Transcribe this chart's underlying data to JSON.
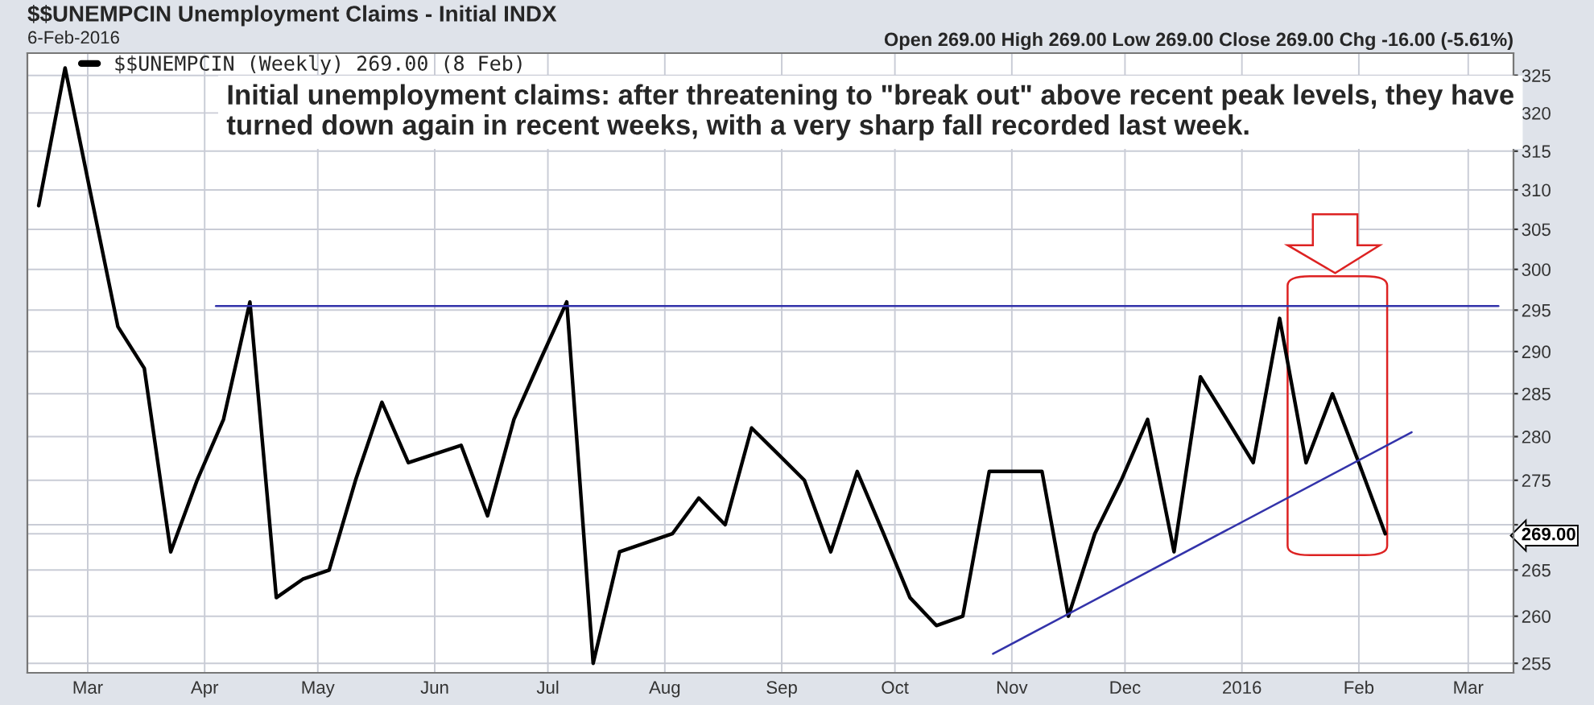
{
  "chart_data": {
    "type": "line",
    "title": "$$UNEMPCIN Unemployment Claims - Initial INDX",
    "subtitle": "6-Feb-2016",
    "x": [
      "2015-02-16",
      "2015-02-23",
      "2015-03-02",
      "2015-03-09",
      "2015-03-16",
      "2015-03-23",
      "2015-03-30",
      "2015-04-06",
      "2015-04-13",
      "2015-04-20",
      "2015-04-27",
      "2015-05-04",
      "2015-05-11",
      "2015-05-18",
      "2015-05-25",
      "2015-06-01",
      "2015-06-08",
      "2015-06-15",
      "2015-06-22",
      "2015-06-29",
      "2015-07-06",
      "2015-07-13",
      "2015-07-20",
      "2015-07-27",
      "2015-08-03",
      "2015-08-10",
      "2015-08-17",
      "2015-08-24",
      "2015-08-31",
      "2015-09-07",
      "2015-09-14",
      "2015-09-21",
      "2015-09-28",
      "2015-10-05",
      "2015-10-12",
      "2015-10-19",
      "2015-10-26",
      "2015-11-02",
      "2015-11-09",
      "2015-11-16",
      "2015-11-23",
      "2015-11-30",
      "2015-12-07",
      "2015-12-14",
      "2015-12-21",
      "2015-12-28",
      "2016-01-04",
      "2016-01-11",
      "2016-01-18",
      "2016-01-25",
      "2016-02-01",
      "2016-02-08"
    ],
    "series": [
      {
        "name": "$$UNEMPCIN (Weekly) 269.00 (8 Feb)",
        "color": "#000000",
        "values": [
          308,
          326,
          309,
          293,
          288,
          267,
          275,
          282,
          296,
          262,
          264,
          265,
          275,
          284,
          277,
          278,
          279,
          271,
          282,
          289,
          296,
          255,
          267,
          268,
          269,
          273,
          270,
          281,
          278,
          275,
          267,
          276,
          269,
          262,
          259,
          260,
          276,
          276,
          276,
          260,
          269,
          275,
          282,
          267,
          287,
          282,
          277,
          294,
          277,
          285,
          277,
          269
        ]
      },
      {
        "type": "line",
        "color": "#3333aa",
        "x": [
          "2015-04-04",
          "2016-03-09"
        ],
        "values": [
          295.5,
          295.5
        ]
      },
      {
        "type": "line",
        "color": "#3333aa",
        "x": [
          "2015-10-27",
          "2016-02-15"
        ],
        "values": [
          256,
          280.5
        ]
      }
    ],
    "annotations": [
      "Open 269.00 High 269.00 Low 269.00 Close 269.00 Chg -16.00 (-5.61%)",
      "Initial unemployment claims: after threatening to \"break out\" above recent peak levels, they have turned down again in recent weeks, with a very sharp fall recorded last week."
    ],
    "log": true,
    "xlim": [
      "2015-02-13",
      "2016-03-13"
    ],
    "xticks": [
      {
        "value": "2015-03-01",
        "label": "Mar"
      },
      {
        "value": "2015-04-01",
        "label": "Apr"
      },
      {
        "value": "2015-05-01",
        "label": "May"
      },
      {
        "value": "2015-06-01",
        "label": "Jun"
      },
      {
        "value": "2015-07-01",
        "label": "Jul"
      },
      {
        "value": "2015-08-01",
        "label": "Aug"
      },
      {
        "value": "2015-09-01",
        "label": "Sep"
      },
      {
        "value": "2015-10-01",
        "label": "Oct"
      },
      {
        "value": "2015-11-01",
        "label": "Nov"
      },
      {
        "value": "2015-12-01",
        "label": "Dec"
      },
      {
        "value": "2016-01-01",
        "label": "2016"
      },
      {
        "value": "2016-02-01",
        "label": "Feb"
      },
      {
        "value": "2016-03-01",
        "label": "Mar"
      }
    ],
    "ylim": [
      254,
      328
    ],
    "yticks": [
      255,
      260,
      265,
      {
        "value": 269,
        "label": "269.00"
      },
      {
        "value": 270,
        "label": null
      },
      275,
      280,
      285,
      290,
      295,
      300,
      305,
      310,
      315,
      320,
      325
    ],
    "grid": true,
    "legend": "top left",
    "line_style": "solid",
    "marker": "none"
  }
}
